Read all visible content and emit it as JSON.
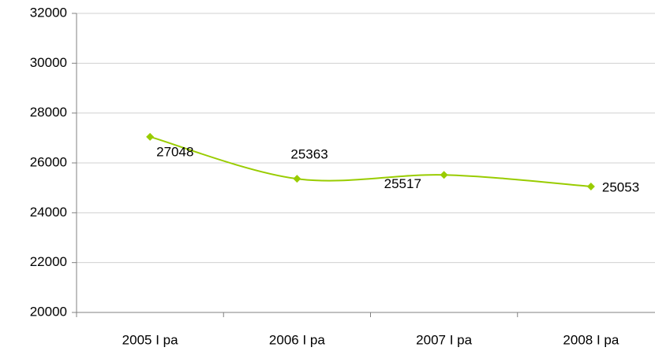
{
  "chart_data": {
    "type": "line",
    "categories": [
      "2005 I pa",
      "2006 I pa",
      "2007 I pa",
      "2008 I pa"
    ],
    "values": [
      27048,
      25363,
      25517,
      25053
    ],
    "value_labels": [
      "27048",
      "25363",
      "25517",
      "25053"
    ],
    "color": "#99cc00",
    "smooth": true,
    "ylim": [
      20000,
      32000
    ],
    "yticks": [
      20000,
      22000,
      24000,
      26000,
      28000,
      30000,
      32000
    ],
    "grid": true
  }
}
